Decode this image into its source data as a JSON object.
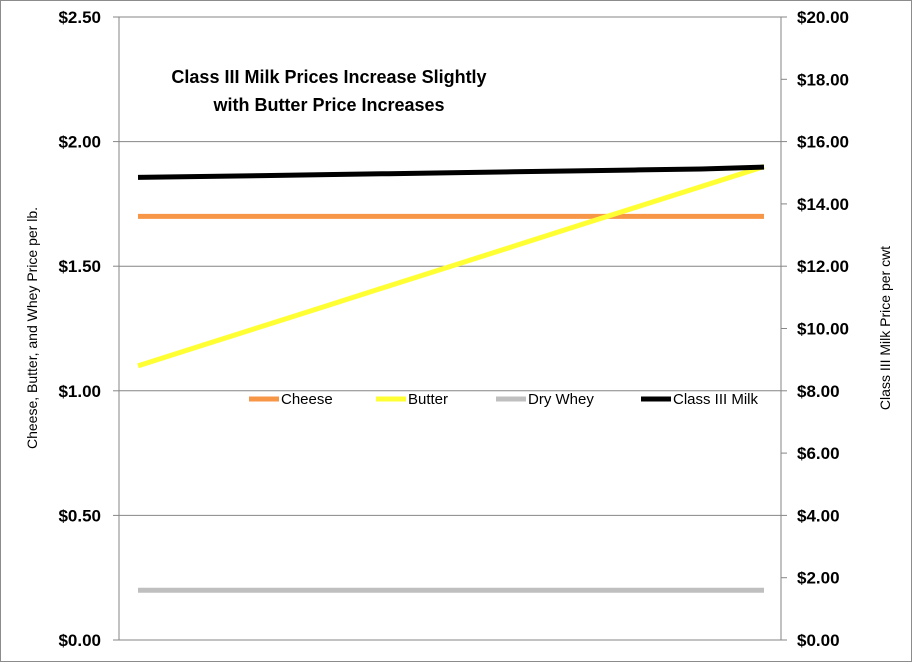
{
  "chart_data": {
    "type": "line",
    "title_lines": [
      "Class III Milk Prices Increase Slightly",
      "with Butter Price Increases"
    ],
    "ylabel_left": "Cheese, Butter, and Whey Price per lb.",
    "ylabel_right": "Class III Milk Price per cwt",
    "left_axis": {
      "min": 0,
      "max": 2.5,
      "ticks": [
        0,
        0.5,
        1.0,
        1.5,
        2.0,
        2.5
      ],
      "tick_labels": [
        "$0.00",
        "$0.50",
        "$1.00",
        "$1.50",
        "$2.00",
        "$2.50"
      ]
    },
    "right_axis": {
      "min": 0,
      "max": 20,
      "ticks": [
        0,
        2,
        4,
        6,
        8,
        10,
        12,
        14,
        16,
        18,
        20
      ],
      "tick_labels": [
        "$0.00",
        "$2.00",
        "$4.00",
        "$6.00",
        "$8.00",
        "$10.00",
        "$12.00",
        "$14.00",
        "$16.00",
        "$18.00",
        "$20.00"
      ]
    },
    "grid": true,
    "legend_placement": "center",
    "series": [
      {
        "name": "Cheese",
        "axis": "left",
        "color": "#f79646",
        "values": [
          1.7,
          1.7,
          1.7,
          1.7,
          1.7,
          1.7,
          1.7,
          1.7,
          1.7,
          1.7,
          1.7
        ]
      },
      {
        "name": "Butter",
        "axis": "left",
        "color": "#ffff33",
        "values": [
          1.1,
          1.18,
          1.26,
          1.34,
          1.42,
          1.5,
          1.58,
          1.66,
          1.74,
          1.82,
          1.9
        ]
      },
      {
        "name": "Dry Whey",
        "axis": "left",
        "color": "#bfbfbf",
        "values": [
          0.2,
          0.2,
          0.2,
          0.2,
          0.2,
          0.2,
          0.2,
          0.2,
          0.2,
          0.2,
          0.2
        ]
      },
      {
        "name": "Class III Milk",
        "axis": "right",
        "color": "#000000",
        "values": [
          14.85,
          14.88,
          14.91,
          14.94,
          14.97,
          15.0,
          15.03,
          15.06,
          15.09,
          15.12,
          15.18
        ]
      }
    ]
  }
}
